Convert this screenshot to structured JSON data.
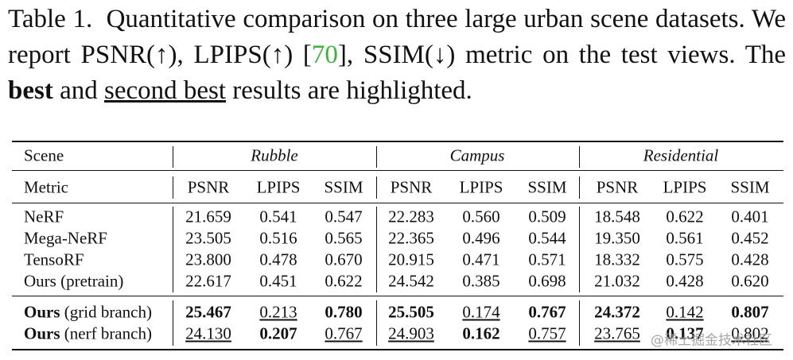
{
  "caption": {
    "label": "Table 1.",
    "parts": [
      "Quantitative comparison on three large urban scene datasets. We report PSNR(↑), LPIPS(↑) [",
      "70",
      "], SSIM(↓) metric on the test views. The ",
      "best",
      " and ",
      "second best",
      " results are highlighted."
    ]
  },
  "table": {
    "header": {
      "scene": "Scene",
      "metric": "Metric",
      "groups": [
        "Rubble",
        "Campus",
        "Residential"
      ],
      "metrics": [
        "PSNR",
        "LPIPS",
        "SSIM",
        "PSNR",
        "LPIPS",
        "SSIM",
        "PSNR",
        "LPIPS",
        "SSIM"
      ]
    },
    "rows": [
      {
        "name": "NeRF",
        "cells": [
          "21.659",
          "0.541",
          "0.547",
          "22.283",
          "0.560",
          "0.509",
          "18.548",
          "0.622",
          "0.401"
        ],
        "emphasis": [
          "none",
          "none",
          "none",
          "none",
          "none",
          "none",
          "none",
          "none",
          "none"
        ]
      },
      {
        "name": "Mega-NeRF",
        "cells": [
          "23.505",
          "0.516",
          "0.565",
          "22.365",
          "0.496",
          "0.544",
          "19.350",
          "0.561",
          "0.452"
        ],
        "emphasis": [
          "none",
          "none",
          "none",
          "none",
          "none",
          "none",
          "none",
          "none",
          "none"
        ]
      },
      {
        "name": "TensoRF",
        "cells": [
          "23.800",
          "0.478",
          "0.670",
          "20.915",
          "0.471",
          "0.571",
          "18.332",
          "0.575",
          "0.428"
        ],
        "emphasis": [
          "none",
          "none",
          "none",
          "none",
          "none",
          "none",
          "none",
          "none",
          "none"
        ]
      },
      {
        "name": "Ours (pretrain)",
        "cells": [
          "22.617",
          "0.451",
          "0.622",
          "24.542",
          "0.385",
          "0.698",
          "21.032",
          "0.428",
          "0.620"
        ],
        "emphasis": [
          "none",
          "none",
          "none",
          "none",
          "none",
          "none",
          "none",
          "none",
          "none"
        ]
      },
      {
        "name_bold": "Ours",
        "name": "(grid branch)",
        "cells": [
          "25.467",
          "0.213",
          "0.780",
          "25.505",
          "0.174",
          "0.767",
          "24.372",
          "0.142",
          "0.807"
        ],
        "emphasis": [
          "bold",
          "underline",
          "bold",
          "bold",
          "underline",
          "bold",
          "bold",
          "underline",
          "bold"
        ]
      },
      {
        "name_bold": "Ours",
        "name": "(nerf branch)",
        "cells": [
          "24.130",
          "0.207",
          "0.767",
          "24.903",
          "0.162",
          "0.757",
          "23.765",
          "0.137",
          "0.802"
        ],
        "emphasis": [
          "underline",
          "bold",
          "underline",
          "underline",
          "bold",
          "underline",
          "underline",
          "bold",
          "underline"
        ]
      }
    ]
  },
  "watermark": "@稀土掘金技术社区"
}
